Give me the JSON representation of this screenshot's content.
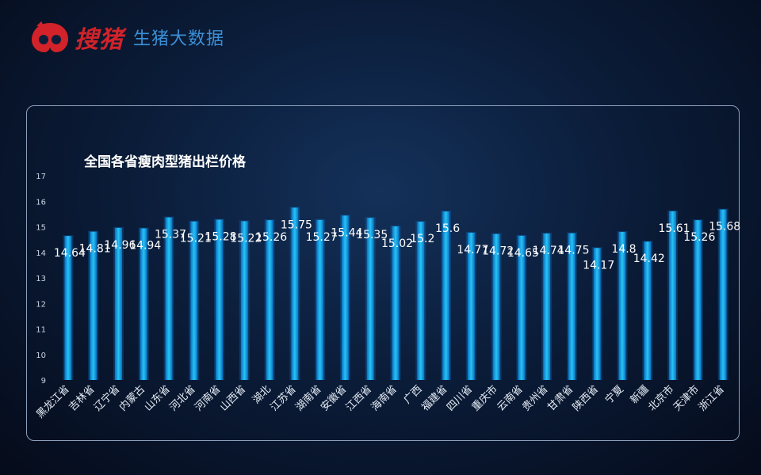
{
  "brand": {
    "name": "搜猪",
    "tagline": "生猪大数据"
  },
  "colors": {
    "background": "#0b1d3a",
    "bar": "#1bb4ec",
    "bar_glow": "#0a6fc0",
    "brand_red": "#d2232a",
    "brand_blue": "#3a8fd6",
    "axis_text": "#c8d3e2",
    "label_text": "#ffffff"
  },
  "chart_data": {
    "type": "bar",
    "title": "全国各省瘦肉型猪出栏价格",
    "xlabel": "",
    "ylabel": "",
    "ylim": [
      9,
      17
    ],
    "yticks": [
      9,
      10,
      11,
      12,
      13,
      14,
      15,
      16,
      17
    ],
    "grid": false,
    "legend": "none",
    "categories": [
      "黑龙江省",
      "吉林省",
      "辽宁省",
      "内蒙古",
      "山东省",
      "河北省",
      "河南省",
      "山西省",
      "湖北",
      "江苏省",
      "湖南省",
      "安徽省",
      "江西省",
      "海南省",
      "广西",
      "福建省",
      "四川省",
      "重庆市",
      "云南省",
      "贵州省",
      "甘肃省",
      "陕西省",
      "宁夏",
      "新疆",
      "北京市",
      "天津市",
      "浙江省"
    ],
    "values": [
      14.64,
      14.81,
      14.96,
      14.94,
      15.37,
      15.21,
      15.28,
      15.22,
      15.26,
      15.75,
      15.27,
      15.44,
      15.35,
      15.02,
      15.2,
      15.6,
      14.77,
      14.72,
      14.65,
      14.74,
      14.75,
      14.17,
      14.8,
      14.42,
      15.61,
      15.26,
      15.68
    ]
  }
}
